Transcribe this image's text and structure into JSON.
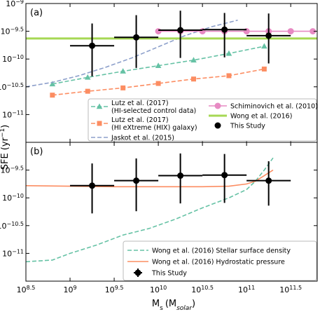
{
  "figure": {
    "shared_xlabel": "M",
    "shared_xlabel_sub": "s",
    "shared_xlabel_unit": "(M",
    "shared_xlabel_unit_sub": "solar",
    "shared_xlabel_close": ")",
    "shared_ylabel": "SFE (yr",
    "shared_ylabel_exp": "−1",
    "shared_ylabel_close": ")"
  },
  "chart_data": [
    {
      "type": "line",
      "panel_label": "(a)",
      "xscale": "log",
      "yscale": "log",
      "xlim_log": [
        8.5,
        11.8
      ],
      "ylim_log": [
        -11.5,
        -9.0
      ],
      "x_ticks": [
        {
          "v": 8.5,
          "base": "10",
          "exp": "8.5"
        },
        {
          "v": 9.0,
          "base": "10",
          "exp": "9"
        },
        {
          "v": 9.5,
          "base": "10",
          "exp": "9.5"
        },
        {
          "v": 10.0,
          "base": "10",
          "exp": "10"
        },
        {
          "v": 10.5,
          "base": "10",
          "exp": "10.5"
        },
        {
          "v": 11.0,
          "base": "10",
          "exp": "11"
        },
        {
          "v": 11.5,
          "base": "10",
          "exp": "11.5"
        }
      ],
      "y_ticks": [
        {
          "v": -9.0,
          "base": "10",
          "exp": "−9"
        },
        {
          "v": -9.5,
          "base": "10",
          "exp": "−9.5"
        },
        {
          "v": -10.0,
          "base": "10",
          "exp": "−10"
        },
        {
          "v": -10.5,
          "base": "10",
          "exp": "−10.5"
        },
        {
          "v": -11.0,
          "base": "10",
          "exp": "−11"
        }
      ],
      "grid": false,
      "legend_position": "lower-right",
      "legend_columns": 2,
      "series": [
        {
          "name": "Lutz et al. (2017)\n(HI-selected control data)",
          "color": "#66c2a5",
          "style": "dashed",
          "marker": "triangle",
          "x": [
            8.8,
            9.2,
            9.6,
            10.0,
            10.4,
            10.8,
            11.2
          ],
          "y": [
            -10.45,
            -10.33,
            -10.22,
            -10.12,
            -10.02,
            -9.9,
            -9.77
          ]
        },
        {
          "name": "Lutz et al. (2017)\n(HI eXtreme (HIX) galaxy)",
          "color": "#fc8d62",
          "style": "dashed",
          "marker": "square",
          "x": [
            8.8,
            9.2,
            9.6,
            10.0,
            10.4,
            10.8,
            11.2
          ],
          "y": [
            -10.65,
            -10.58,
            -10.52,
            -10.44,
            -10.36,
            -10.3,
            -10.18
          ]
        },
        {
          "name": "Jaskot et al. (2015)",
          "color": "#8da0cb",
          "style": "dashed",
          "marker": "none",
          "x": [
            8.5,
            8.8,
            9.1,
            9.4,
            9.7,
            10.0,
            10.3,
            10.6,
            10.9
          ],
          "y": [
            -10.5,
            -10.42,
            -10.3,
            -10.15,
            -9.98,
            -9.78,
            -9.58,
            -9.42,
            -9.3
          ]
        },
        {
          "name": "Schiminovich et al. (2010)",
          "color": "#e78ac3",
          "style": "solid",
          "marker": "circle",
          "x": [
            10.0,
            10.25,
            10.5,
            10.75,
            11.0,
            11.25,
            11.5,
            11.75
          ],
          "y": [
            -9.5,
            -9.5,
            -9.5,
            -9.5,
            -9.5,
            -9.5,
            -9.5,
            -9.5
          ]
        },
        {
          "name": "Wong et al. (2016)",
          "color": "#a6d854",
          "style": "solid",
          "marker": "none",
          "linewidth": 3,
          "x": [
            8.5,
            11.8
          ],
          "y": [
            -9.63,
            -9.63
          ]
        },
        {
          "name": "This Study",
          "color": "#000000",
          "style": "none",
          "marker": "circle",
          "x": [
            9.25,
            9.75,
            10.25,
            10.75,
            11.25
          ],
          "y": [
            -9.76,
            -9.61,
            -9.48,
            -9.47,
            -9.58
          ],
          "xerr": [
            0.25,
            0.25,
            0.25,
            0.25,
            0.25
          ],
          "yerr_low": [
            0.55,
            0.55,
            0.5,
            0.5,
            0.5
          ],
          "yerr_high": [
            0.4,
            0.4,
            0.35,
            0.3,
            0.4
          ]
        }
      ]
    },
    {
      "type": "line",
      "panel_label": "(b)",
      "xscale": "log",
      "yscale": "log",
      "xlim_log": [
        8.5,
        11.8
      ],
      "ylim_log": [
        -11.5,
        -9.0
      ],
      "x_ticks": [
        {
          "v": 8.5,
          "base": "10",
          "exp": "8.5"
        },
        {
          "v": 9.0,
          "base": "10",
          "exp": "9"
        },
        {
          "v": 9.5,
          "base": "10",
          "exp": "9.5"
        },
        {
          "v": 10.0,
          "base": "10",
          "exp": "10"
        },
        {
          "v": 10.5,
          "base": "10",
          "exp": "10.5"
        },
        {
          "v": 11.0,
          "base": "10",
          "exp": "11"
        },
        {
          "v": 11.5,
          "base": "10",
          "exp": "11.5"
        }
      ],
      "y_ticks": [
        {
          "v": -9.5,
          "base": "10",
          "exp": "−9.5"
        },
        {
          "v": -10.0,
          "base": "10",
          "exp": "−10"
        },
        {
          "v": -10.5,
          "base": "10",
          "exp": "−10.5"
        },
        {
          "v": -11.0,
          "base": "10",
          "exp": "−11"
        }
      ],
      "grid": false,
      "legend_position": "lower-right",
      "legend_columns": 1,
      "series": [
        {
          "name": "Wong et al. (2016) Stellar surface density",
          "color": "#66c2a5",
          "style": "dashed",
          "marker": "none",
          "x": [
            8.5,
            8.8,
            9.0,
            9.3,
            9.6,
            9.9,
            10.2,
            10.5,
            10.8,
            11.0,
            11.1,
            11.2,
            11.3
          ],
          "y": [
            -11.15,
            -11.12,
            -11.0,
            -10.85,
            -10.67,
            -10.55,
            -10.38,
            -10.18,
            -10.0,
            -9.85,
            -9.7,
            -9.5,
            -9.28
          ]
        },
        {
          "name": "Wong et al. (2016) Hydrostatic pressure",
          "color": "#fc8d62",
          "style": "solid",
          "marker": "none",
          "x": [
            8.5,
            9.0,
            9.5,
            10.0,
            10.5,
            10.8,
            11.0,
            11.1,
            11.2,
            11.3
          ],
          "y": [
            -9.78,
            -9.79,
            -9.8,
            -9.8,
            -9.8,
            -9.79,
            -9.75,
            -9.7,
            -9.6,
            -9.5
          ]
        },
        {
          "name": "This Study",
          "color": "#000000",
          "style": "none",
          "marker": "circle",
          "x": [
            9.25,
            9.75,
            10.25,
            10.75,
            11.25
          ],
          "y": [
            -9.78,
            -9.69,
            -9.6,
            -9.59,
            -9.69
          ],
          "xerr": [
            0.25,
            0.25,
            0.25,
            0.25,
            0.25
          ],
          "yerr_low": [
            0.5,
            0.55,
            0.5,
            0.5,
            0.45
          ],
          "yerr_high": [
            0.4,
            0.4,
            0.4,
            0.38,
            0.35
          ]
        }
      ]
    }
  ]
}
